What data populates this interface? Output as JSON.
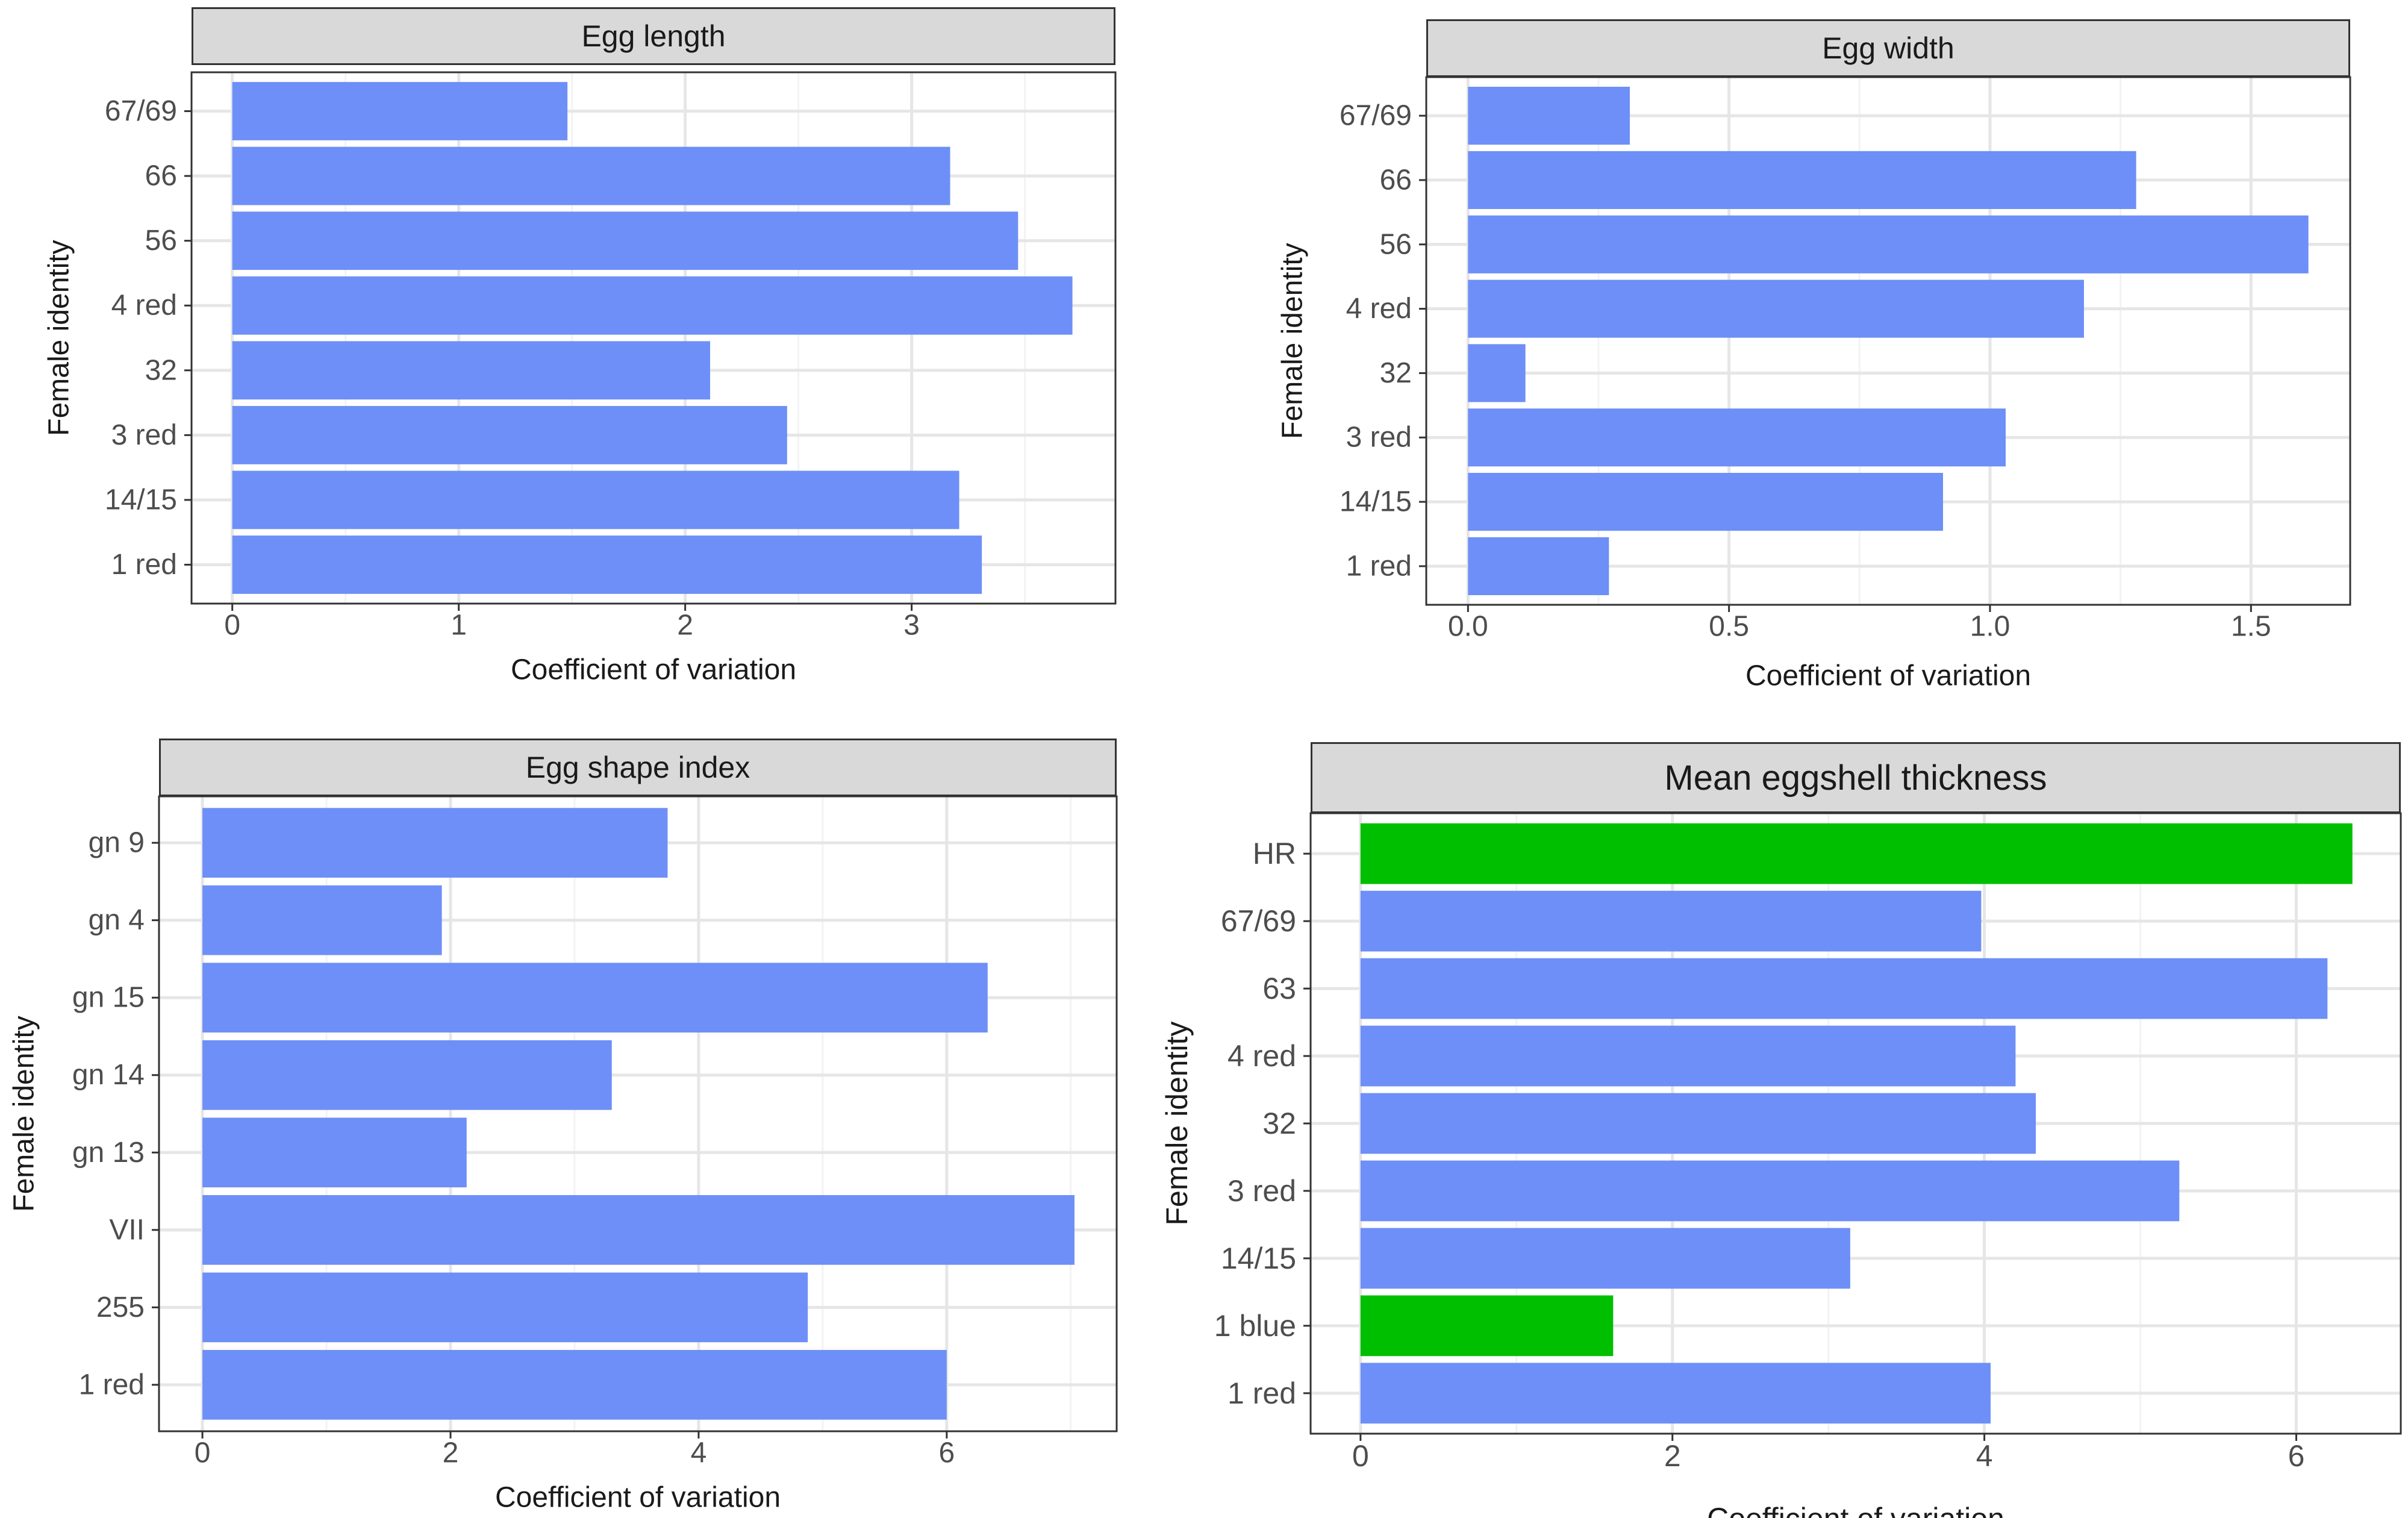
{
  "colors": {
    "bar": "#6d8ff7",
    "highlight": "#00bf00",
    "grid_major": "#e6e6e6",
    "grid_minor": "#f3f3f3",
    "strip_bg": "#d9d9d9",
    "frame": "#333333"
  },
  "chart_data": [
    {
      "type": "bar",
      "orientation": "horizontal",
      "title": "Egg length",
      "xlabel": "Coefficient of variation",
      "ylabel": "Female identity",
      "categories": [
        "67/69",
        "66",
        "56",
        "4 red",
        "32",
        "3 red",
        "14/15",
        "1 red"
      ],
      "values": [
        1.48,
        3.17,
        3.47,
        3.71,
        2.11,
        2.45,
        3.21,
        3.31
      ],
      "highlight": [
        false,
        false,
        false,
        false,
        false,
        false,
        false,
        false
      ],
      "xlim": [
        -0.18,
        3.9
      ],
      "xticks": [
        0,
        1,
        2,
        3
      ],
      "xtick_labels": [
        "0",
        "1",
        "2",
        "3"
      ],
      "grid": true
    },
    {
      "type": "bar",
      "orientation": "horizontal",
      "title": "Egg width",
      "xlabel": "Coefficient of variation",
      "ylabel": "Female identity",
      "categories": [
        "67/69",
        "66",
        "56",
        "4 red",
        "32",
        "3 red",
        "14/15",
        "1 red"
      ],
      "values": [
        0.31,
        1.28,
        1.61,
        1.18,
        0.11,
        1.03,
        0.91,
        0.27
      ],
      "highlight": [
        false,
        false,
        false,
        false,
        false,
        false,
        false,
        false
      ],
      "xlim": [
        -0.08,
        1.69
      ],
      "xticks": [
        0.0,
        0.5,
        1.0,
        1.5
      ],
      "xtick_labels": [
        "0.0",
        "0.5",
        "1.0",
        "1.5"
      ],
      "grid": true
    },
    {
      "type": "bar",
      "orientation": "horizontal",
      "title": "Egg shape index",
      "xlabel": "Coefficient of variation",
      "ylabel": "Female identity",
      "categories": [
        "gn 9",
        "gn 4",
        "gn 15",
        "gn 14",
        "gn 13",
        "VII",
        "255",
        "1 red"
      ],
      "values": [
        3.75,
        1.93,
        6.33,
        3.3,
        2.13,
        7.03,
        4.88,
        6.0
      ],
      "highlight": [
        false,
        false,
        false,
        false,
        false,
        false,
        false,
        false
      ],
      "xlim": [
        -0.35,
        7.37
      ],
      "xticks": [
        0,
        2,
        4,
        6
      ],
      "xtick_labels": [
        "0",
        "2",
        "4",
        "6"
      ],
      "grid": true
    },
    {
      "type": "bar",
      "orientation": "horizontal",
      "title": "Mean eggshell thickness",
      "xlabel": "Coefficient of variation",
      "ylabel": "Female identity",
      "categories": [
        "HR",
        "67/69",
        "63",
        "4 red",
        "32",
        "3 red",
        "14/15",
        "1 blue",
        "1 red"
      ],
      "values": [
        6.36,
        3.98,
        6.2,
        4.2,
        4.33,
        5.25,
        3.14,
        1.62,
        4.04
      ],
      "highlight": [
        true,
        false,
        false,
        false,
        false,
        false,
        false,
        true,
        false
      ],
      "xlim": [
        -0.32,
        6.67
      ],
      "xticks": [
        0,
        2,
        4,
        6
      ],
      "xtick_labels": [
        "0",
        "2",
        "4",
        "6"
      ],
      "grid": true
    }
  ]
}
